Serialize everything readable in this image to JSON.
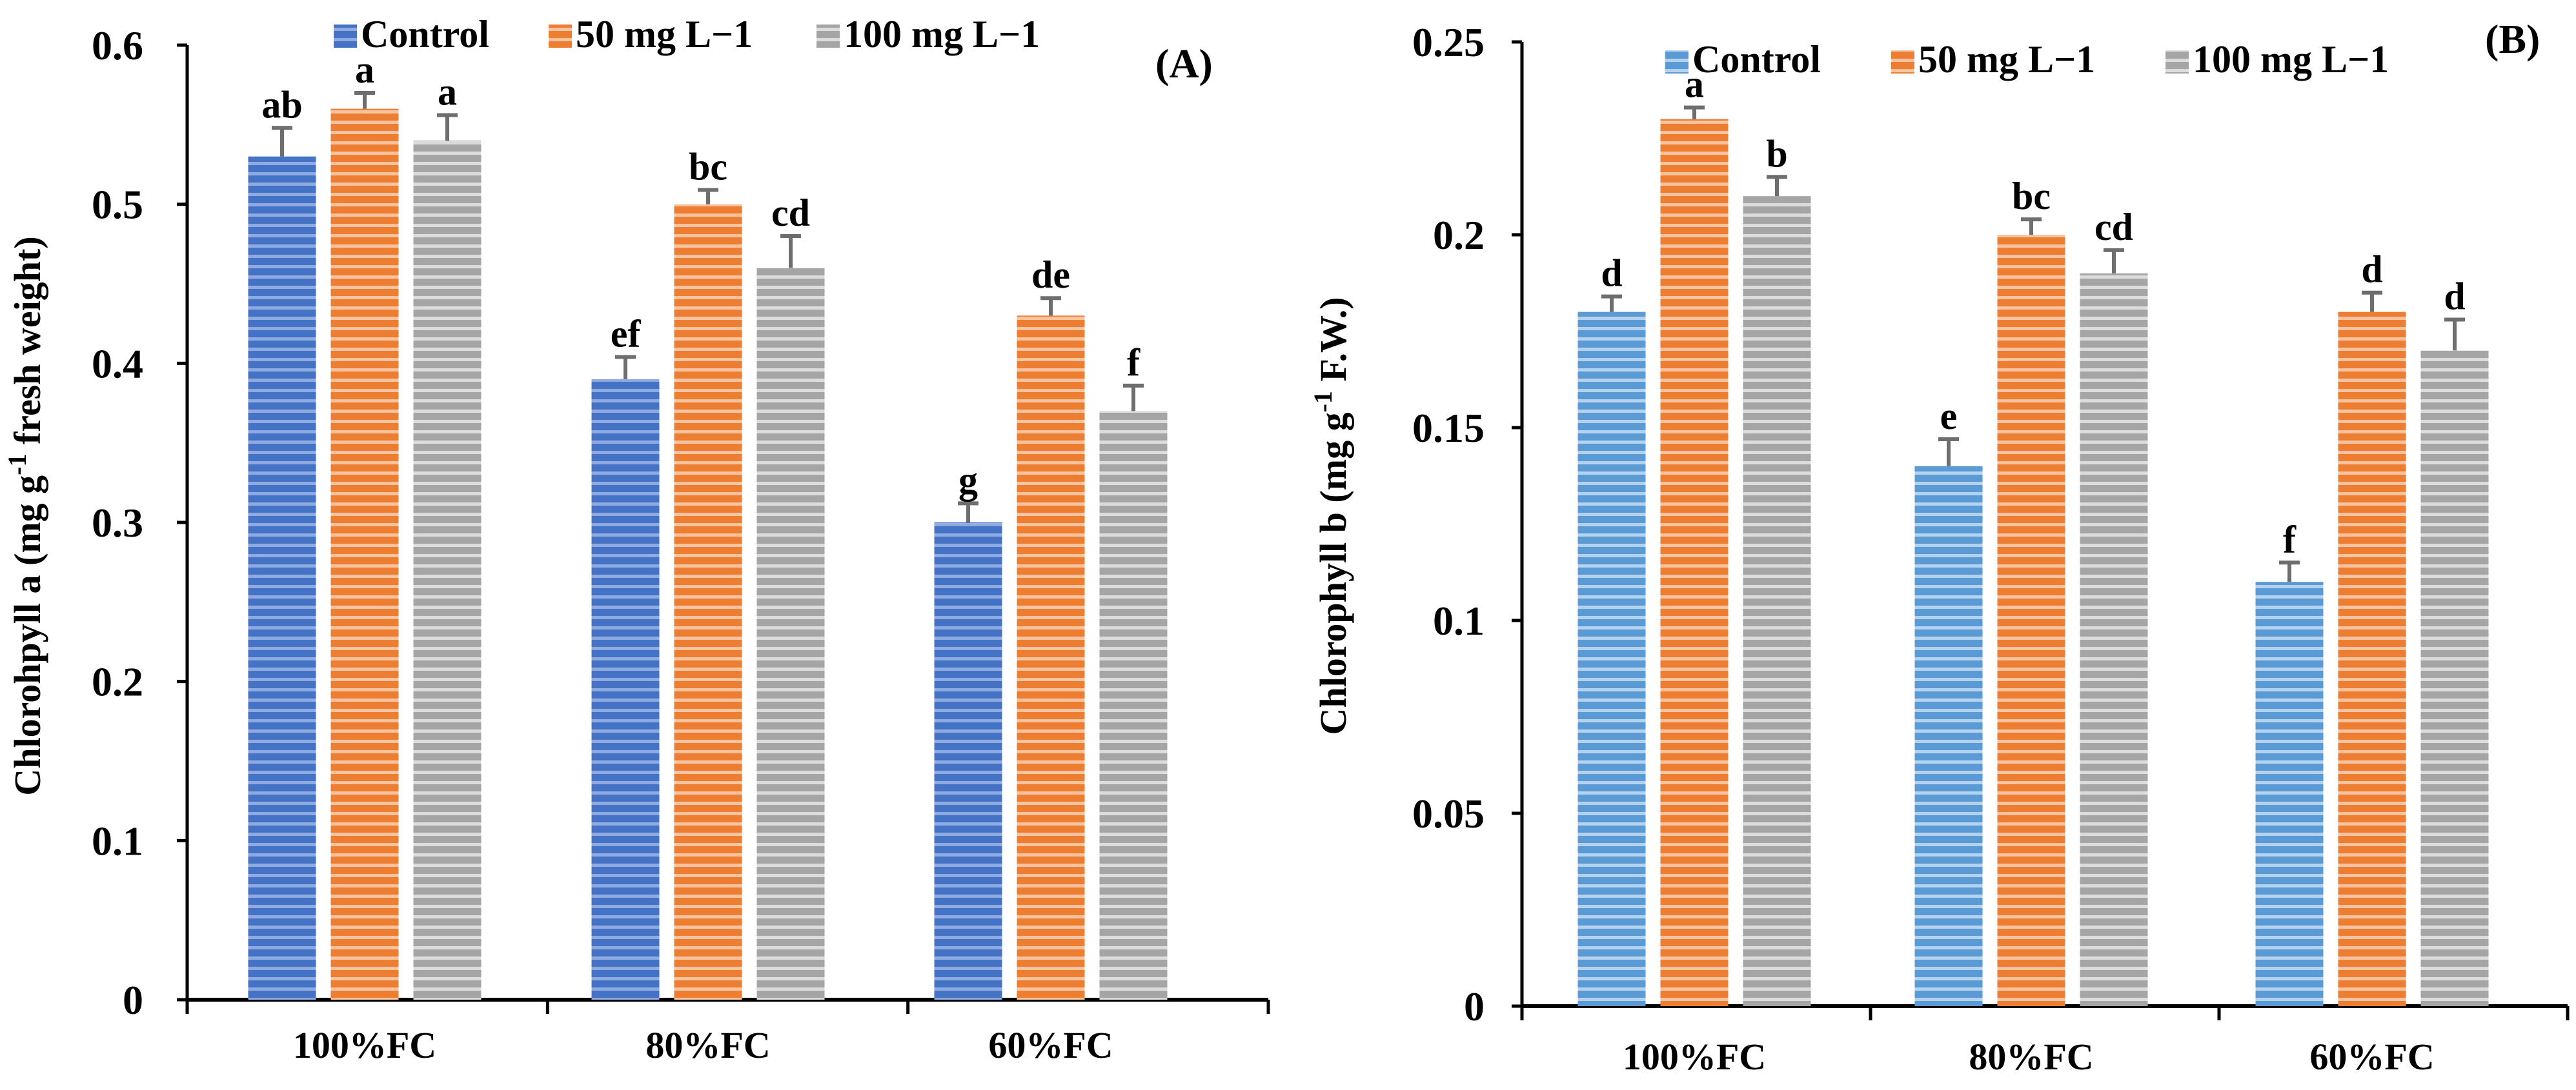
{
  "colors": {
    "panel_a": [
      "#4472c4",
      "#ed7d31",
      "#a5a5a5"
    ],
    "panel_b": [
      "#5b9bd5",
      "#ed7d31",
      "#a5a5a5"
    ]
  },
  "chart_data": [
    {
      "type": "bar",
      "panel_label": "(A)",
      "categories": [
        "100%FC",
        "80%FC",
        "60%FC"
      ],
      "series": [
        {
          "name": "Control",
          "values": [
            0.53,
            0.39,
            0.3
          ],
          "errors": [
            0.018,
            0.014,
            0.012
          ],
          "letters": [
            "ab",
            "ef",
            "g"
          ]
        },
        {
          "name": "50 mg L−1",
          "values": [
            0.56,
            0.5,
            0.43
          ],
          "errors": [
            0.01,
            0.009,
            0.011
          ],
          "letters": [
            "a",
            "bc",
            "de"
          ]
        },
        {
          "name": "100 mg L−1",
          "values": [
            0.54,
            0.46,
            0.37
          ],
          "errors": [
            0.016,
            0.02,
            0.016
          ],
          "letters": [
            "a",
            "cd",
            "f"
          ]
        }
      ],
      "ylabel_prefix": "Chlorohpyll a (mg g",
      "ylabel_sup": "-1",
      "ylabel_suffix": " fresh weight)",
      "ylim": [
        0,
        0.6
      ],
      "yticks": [
        0,
        0.1,
        0.2,
        0.3,
        0.4,
        0.5,
        0.6
      ],
      "ytick_labels": [
        "0",
        "0.1",
        "0.2",
        "0.3",
        "0.4",
        "0.5",
        "0.6"
      ]
    },
    {
      "type": "bar",
      "panel_label": "(B)",
      "categories": [
        "100%FC",
        "80%FC",
        "60%FC"
      ],
      "series": [
        {
          "name": "Control",
          "values": [
            0.18,
            0.14,
            0.11
          ],
          "errors": [
            0.004,
            0.007,
            0.005
          ],
          "letters": [
            "d",
            "e",
            "f"
          ]
        },
        {
          "name": "50 mg L−1",
          "values": [
            0.23,
            0.2,
            0.18
          ],
          "errors": [
            0.003,
            0.004,
            0.005
          ],
          "letters": [
            "a",
            "bc",
            "d"
          ]
        },
        {
          "name": "100 mg L−1",
          "values": [
            0.21,
            0.19,
            0.17
          ],
          "errors": [
            0.005,
            0.006,
            0.008
          ],
          "letters": [
            "b",
            "cd",
            "d"
          ]
        }
      ],
      "ylabel_prefix": "Chlorophyll b (mg g",
      "ylabel_sup": "-1",
      "ylabel_suffix": " F.W.)",
      "ylim": [
        0,
        0.25
      ],
      "yticks": [
        0,
        0.05,
        0.1,
        0.15,
        0.2,
        0.25
      ],
      "ytick_labels": [
        "0",
        "0.05",
        "0.1",
        "0.15",
        "0.2",
        "0.25"
      ]
    }
  ]
}
